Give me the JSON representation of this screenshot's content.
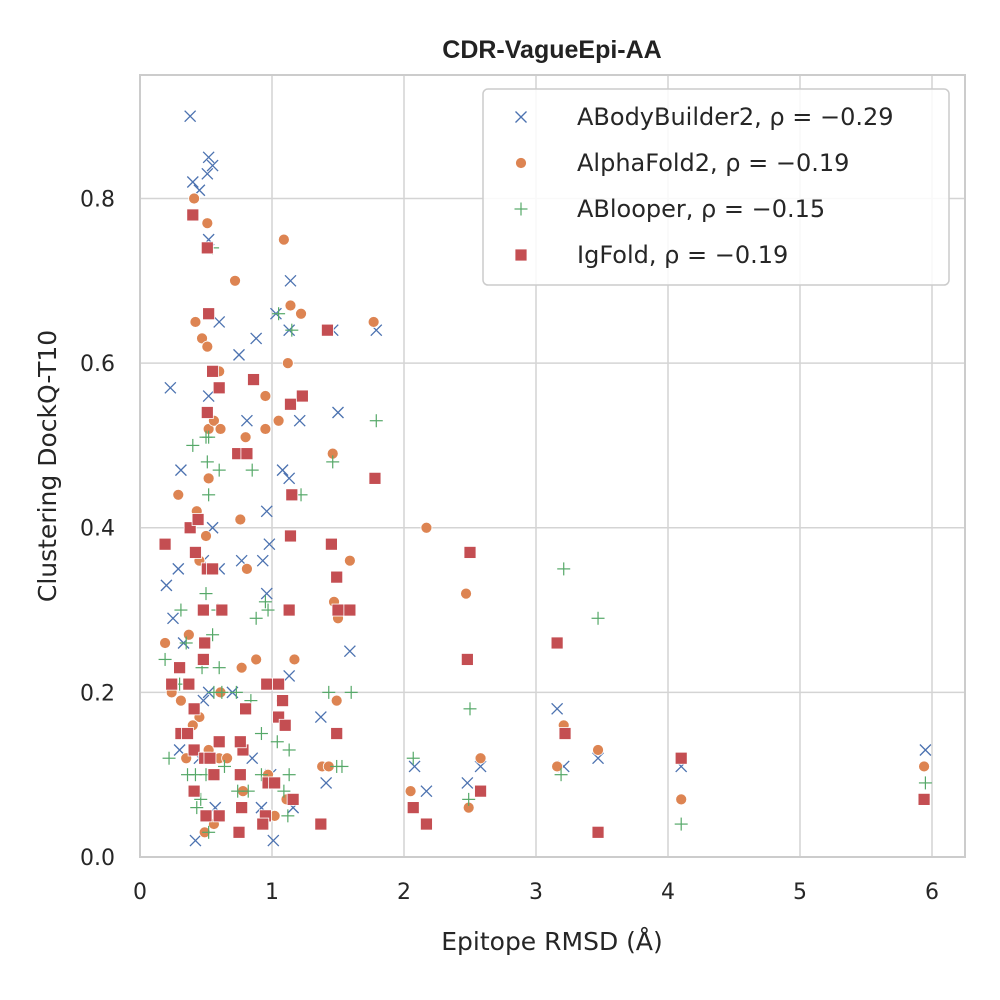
{
  "chart_data": {
    "type": "scatter",
    "title": "CDR-VagueEpi-AA",
    "xlabel": "Epitope RMSD (Å)",
    "ylabel": "Clustering DockQ-T10",
    "xlim": [
      0,
      6.25
    ],
    "ylim": [
      0,
      0.95
    ],
    "xticks": [
      0,
      1,
      2,
      3,
      4,
      5,
      6
    ],
    "yticks": [
      0.0,
      0.2,
      0.4,
      0.6,
      0.8
    ],
    "grid": true,
    "legend_position": "top-right",
    "series": [
      {
        "name": "ABodyBuilder2, ρ = −0.29",
        "marker": "x",
        "color": "#4c72b0",
        "points": [
          [
            0.38,
            0.9
          ],
          [
            0.4,
            0.82
          ],
          [
            0.45,
            0.81
          ],
          [
            0.52,
            0.85
          ],
          [
            0.55,
            0.84
          ],
          [
            0.51,
            0.83
          ],
          [
            0.52,
            0.75
          ],
          [
            0.6,
            0.65
          ],
          [
            0.23,
            0.57
          ],
          [
            0.52,
            0.56
          ],
          [
            0.75,
            0.61
          ],
          [
            0.88,
            0.63
          ],
          [
            0.81,
            0.53
          ],
          [
            1.03,
            0.66
          ],
          [
            1.14,
            0.7
          ],
          [
            1.13,
            0.64
          ],
          [
            1.21,
            0.53
          ],
          [
            1.46,
            0.64
          ],
          [
            1.5,
            0.54
          ],
          [
            1.79,
            0.64
          ],
          [
            1.08,
            0.47
          ],
          [
            1.13,
            0.46
          ],
          [
            0.31,
            0.47
          ],
          [
            0.29,
            0.35
          ],
          [
            0.2,
            0.33
          ],
          [
            0.25,
            0.29
          ],
          [
            0.33,
            0.26
          ],
          [
            0.48,
            0.36
          ],
          [
            0.55,
            0.4
          ],
          [
            0.77,
            0.36
          ],
          [
            0.96,
            0.42
          ],
          [
            0.98,
            0.38
          ],
          [
            0.93,
            0.36
          ],
          [
            0.96,
            0.32
          ],
          [
            0.6,
            0.35
          ],
          [
            0.7,
            0.2
          ],
          [
            0.52,
            0.2
          ],
          [
            0.48,
            0.19
          ],
          [
            0.45,
            0.12
          ],
          [
            0.3,
            0.13
          ],
          [
            0.76,
            0.14
          ],
          [
            0.85,
            0.12
          ],
          [
            0.92,
            0.06
          ],
          [
            0.99,
            0.1
          ],
          [
            1.01,
            0.02
          ],
          [
            1.13,
            0.22
          ],
          [
            1.16,
            0.06
          ],
          [
            1.37,
            0.17
          ],
          [
            1.41,
            0.09
          ],
          [
            1.59,
            0.25
          ],
          [
            0.42,
            0.02
          ],
          [
            2.08,
            0.11
          ],
          [
            2.17,
            0.08
          ],
          [
            2.48,
            0.09
          ],
          [
            2.58,
            0.11
          ],
          [
            3.16,
            0.18
          ],
          [
            3.21,
            0.11
          ],
          [
            3.47,
            0.12
          ],
          [
            4.1,
            0.11
          ],
          [
            5.95,
            0.13
          ],
          [
            0.57,
            0.06
          ]
        ]
      },
      {
        "name": "AlphaFold2, ρ = −0.19",
        "marker": "circle",
        "color": "#dd8452",
        "points": [
          [
            0.41,
            0.8
          ],
          [
            0.51,
            0.77
          ],
          [
            0.72,
            0.7
          ],
          [
            1.09,
            0.75
          ],
          [
            0.42,
            0.65
          ],
          [
            0.47,
            0.63
          ],
          [
            0.51,
            0.62
          ],
          [
            1.14,
            0.67
          ],
          [
            1.22,
            0.66
          ],
          [
            1.77,
            0.65
          ],
          [
            1.12,
            0.6
          ],
          [
            0.6,
            0.59
          ],
          [
            0.95,
            0.56
          ],
          [
            0.52,
            0.52
          ],
          [
            0.56,
            0.53
          ],
          [
            0.61,
            0.52
          ],
          [
            0.8,
            0.51
          ],
          [
            0.95,
            0.52
          ],
          [
            1.05,
            0.53
          ],
          [
            0.29,
            0.44
          ],
          [
            0.52,
            0.46
          ],
          [
            1.46,
            0.49
          ],
          [
            2.17,
            0.4
          ],
          [
            0.43,
            0.42
          ],
          [
            0.76,
            0.41
          ],
          [
            0.5,
            0.39
          ],
          [
            0.81,
            0.35
          ],
          [
            0.45,
            0.36
          ],
          [
            1.59,
            0.36
          ],
          [
            2.47,
            0.32
          ],
          [
            1.47,
            0.31
          ],
          [
            1.5,
            0.29
          ],
          [
            0.37,
            0.27
          ],
          [
            0.19,
            0.26
          ],
          [
            0.24,
            0.2
          ],
          [
            0.31,
            0.19
          ],
          [
            0.88,
            0.24
          ],
          [
            0.77,
            0.23
          ],
          [
            1.17,
            0.24
          ],
          [
            0.61,
            0.2
          ],
          [
            0.45,
            0.17
          ],
          [
            0.4,
            0.16
          ],
          [
            0.35,
            0.12
          ],
          [
            0.52,
            0.13
          ],
          [
            0.6,
            0.12
          ],
          [
            0.66,
            0.12
          ],
          [
            0.78,
            0.08
          ],
          [
            0.97,
            0.1
          ],
          [
            1.07,
            0.19
          ],
          [
            1.11,
            0.07
          ],
          [
            1.38,
            0.11
          ],
          [
            1.43,
            0.11
          ],
          [
            1.49,
            0.19
          ],
          [
            0.56,
            0.04
          ],
          [
            0.49,
            0.03
          ],
          [
            1.02,
            0.05
          ],
          [
            2.05,
            0.08
          ],
          [
            2.49,
            0.06
          ],
          [
            2.58,
            0.12
          ],
          [
            3.16,
            0.11
          ],
          [
            3.21,
            0.16
          ],
          [
            3.47,
            0.13
          ],
          [
            4.1,
            0.07
          ],
          [
            5.94,
            0.11
          ]
        ]
      },
      {
        "name": "ABlooper, ρ = −0.15",
        "marker": "plus",
        "color": "#55a868",
        "points": [
          [
            0.55,
            0.74
          ],
          [
            1.05,
            0.66
          ],
          [
            1.15,
            0.64
          ],
          [
            0.5,
            0.51
          ],
          [
            0.52,
            0.51
          ],
          [
            0.4,
            0.5
          ],
          [
            0.51,
            0.48
          ],
          [
            0.6,
            0.47
          ],
          [
            0.85,
            0.47
          ],
          [
            0.52,
            0.44
          ],
          [
            1.79,
            0.53
          ],
          [
            1.46,
            0.48
          ],
          [
            1.22,
            0.44
          ],
          [
            0.31,
            0.3
          ],
          [
            0.5,
            0.32
          ],
          [
            0.59,
            0.3
          ],
          [
            0.95,
            0.31
          ],
          [
            0.97,
            0.3
          ],
          [
            0.88,
            0.29
          ],
          [
            0.35,
            0.26
          ],
          [
            0.3,
            0.21
          ],
          [
            0.19,
            0.24
          ],
          [
            0.47,
            0.23
          ],
          [
            0.55,
            0.27
          ],
          [
            0.6,
            0.23
          ],
          [
            0.56,
            0.2
          ],
          [
            0.62,
            0.2
          ],
          [
            0.73,
            0.2
          ],
          [
            0.84,
            0.19
          ],
          [
            0.92,
            0.15
          ],
          [
            1.04,
            0.14
          ],
          [
            1.13,
            0.13
          ],
          [
            1.13,
            0.1
          ],
          [
            1.43,
            0.2
          ],
          [
            1.6,
            0.2
          ],
          [
            0.22,
            0.12
          ],
          [
            0.36,
            0.1
          ],
          [
            0.42,
            0.1
          ],
          [
            0.5,
            0.1
          ],
          [
            0.64,
            0.11
          ],
          [
            0.74,
            0.08
          ],
          [
            0.82,
            0.08
          ],
          [
            0.92,
            0.1
          ],
          [
            1.09,
            0.08
          ],
          [
            1.12,
            0.05
          ],
          [
            1.49,
            0.11
          ],
          [
            1.53,
            0.11
          ],
          [
            0.43,
            0.06
          ],
          [
            0.52,
            0.03
          ],
          [
            0.46,
            0.07
          ],
          [
            2.07,
            0.12
          ],
          [
            2.5,
            0.18
          ],
          [
            2.49,
            0.07
          ],
          [
            3.21,
            0.35
          ],
          [
            3.47,
            0.29
          ],
          [
            3.19,
            0.1
          ],
          [
            4.1,
            0.04
          ],
          [
            5.95,
            0.09
          ]
        ]
      },
      {
        "name": "IgFold, ρ = −0.19",
        "marker": "square",
        "color": "#c44e52",
        "points": [
          [
            0.4,
            0.78
          ],
          [
            0.51,
            0.74
          ],
          [
            0.52,
            0.66
          ],
          [
            0.55,
            0.59
          ],
          [
            0.6,
            0.57
          ],
          [
            0.86,
            0.58
          ],
          [
            1.14,
            0.55
          ],
          [
            1.23,
            0.56
          ],
          [
            1.42,
            0.64
          ],
          [
            0.51,
            0.54
          ],
          [
            0.74,
            0.49
          ],
          [
            0.81,
            0.49
          ],
          [
            1.15,
            0.44
          ],
          [
            1.78,
            0.46
          ],
          [
            0.38,
            0.4
          ],
          [
            0.44,
            0.41
          ],
          [
            0.19,
            0.38
          ],
          [
            0.42,
            0.37
          ],
          [
            0.51,
            0.35
          ],
          [
            0.55,
            0.35
          ],
          [
            1.14,
            0.39
          ],
          [
            1.45,
            0.38
          ],
          [
            1.49,
            0.34
          ],
          [
            1.5,
            0.3
          ],
          [
            1.59,
            0.3
          ],
          [
            2.5,
            0.37
          ],
          [
            0.48,
            0.3
          ],
          [
            0.62,
            0.3
          ],
          [
            1.13,
            0.3
          ],
          [
            0.49,
            0.26
          ],
          [
            0.48,
            0.24
          ],
          [
            0.3,
            0.23
          ],
          [
            0.24,
            0.21
          ],
          [
            0.37,
            0.21
          ],
          [
            0.6,
            0.14
          ],
          [
            0.41,
            0.18
          ],
          [
            0.31,
            0.15
          ],
          [
            0.36,
            0.15
          ],
          [
            0.41,
            0.13
          ],
          [
            0.49,
            0.12
          ],
          [
            0.53,
            0.12
          ],
          [
            0.56,
            0.1
          ],
          [
            0.41,
            0.08
          ],
          [
            0.76,
            0.1
          ],
          [
            0.78,
            0.13
          ],
          [
            0.8,
            0.18
          ],
          [
            0.76,
            0.14
          ],
          [
            0.96,
            0.21
          ],
          [
            1.05,
            0.21
          ],
          [
            1.05,
            0.17
          ],
          [
            1.08,
            0.19
          ],
          [
            1.1,
            0.16
          ],
          [
            0.97,
            0.09
          ],
          [
            1.02,
            0.09
          ],
          [
            0.95,
            0.05
          ],
          [
            0.93,
            0.04
          ],
          [
            0.77,
            0.06
          ],
          [
            0.75,
            0.03
          ],
          [
            0.6,
            0.05
          ],
          [
            0.5,
            0.05
          ],
          [
            1.16,
            0.07
          ],
          [
            1.37,
            0.04
          ],
          [
            1.49,
            0.15
          ],
          [
            2.48,
            0.24
          ],
          [
            3.16,
            0.26
          ],
          [
            3.22,
            0.15
          ],
          [
            2.07,
            0.06
          ],
          [
            2.17,
            0.04
          ],
          [
            2.58,
            0.08
          ],
          [
            3.47,
            0.03
          ],
          [
            4.1,
            0.12
          ],
          [
            5.94,
            0.07
          ]
        ]
      }
    ]
  }
}
